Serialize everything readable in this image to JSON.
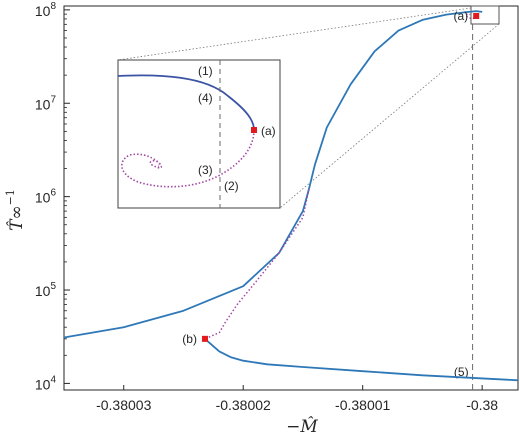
{
  "chart_data": {
    "type": "line",
    "xlabel": "−M̂",
    "ylabel": "T̂∞",
    "ylabel_superscript": "−1",
    "ylog": true,
    "xlim": [
      -0.380035,
      -0.379997
    ],
    "ylim": [
      8500,
      110000000
    ],
    "xticks": [
      {
        "value": -0.38003,
        "label": "-0.38003"
      },
      {
        "value": -0.38002,
        "label": "-0.38002"
      },
      {
        "value": -0.38001,
        "label": "-0.38001"
      },
      {
        "value": -0.38,
        "label": "-0.38"
      }
    ],
    "yticks": [
      {
        "value": 10000,
        "base": "10",
        "exp": "4"
      },
      {
        "value": 100000,
        "base": "10",
        "exp": "5"
      },
      {
        "value": 1000000,
        "base": "10",
        "exp": "6"
      },
      {
        "value": 10000000,
        "base": "10",
        "exp": "7"
      },
      {
        "value": 100000000,
        "base": "10",
        "exp": "8"
      }
    ],
    "series": [
      {
        "style": "solid",
        "color": "#2e78b7",
        "x": [
          -0.380035,
          -0.38003,
          -0.380025,
          -0.38002,
          -0.380017,
          -0.380015,
          -0.3800145,
          -0.380014,
          -0.380013,
          -0.380011,
          -0.380009,
          -0.380007,
          -0.380005,
          -0.380003,
          -0.3800015,
          -0.3800005,
          -0.38
        ],
        "y": [
          31000,
          40000,
          60000,
          110000,
          250000,
          700000,
          1200000,
          2200000,
          5500000,
          16000000,
          36000000,
          60000000,
          78000000,
          89000000,
          94000000,
          97000000,
          95000000
        ]
      },
      {
        "style": "dotted",
        "color": "#a349a4",
        "x": [
          -0.3800004,
          -0.3800008,
          -0.3800012,
          -0.3800014,
          -0.3800012,
          -0.380001
        ],
        "y": [
          86000000,
          80000000,
          83000000,
          88000000,
          91000000,
          89000000
        ]
      },
      {
        "style": "dotted",
        "color": "#a349a4",
        "x": [
          -0.3800145,
          -0.380015,
          -0.380017,
          -0.380019,
          -0.3800205,
          -0.3800215,
          -0.380022,
          -0.3800232
        ],
        "y": [
          1200000,
          600000,
          250000,
          120000,
          70000,
          45000,
          35000,
          30000
        ]
      },
      {
        "style": "solid",
        "color": "#2e78b7",
        "x": [
          -0.3800232,
          -0.380022,
          -0.380021,
          -0.38002,
          -0.380018,
          -0.380015,
          -0.38001,
          -0.380005,
          -0.379997
        ],
        "y": [
          30000,
          22000,
          19000,
          17500,
          16000,
          15000,
          13500,
          12200,
          10800
        ]
      }
    ],
    "points": [
      {
        "label": "(a)",
        "x": -0.3800005,
        "y": 86000000,
        "color": "#e31a1c"
      },
      {
        "label": "(b)",
        "x": -0.3800232,
        "y": 30000,
        "color": "#e31a1c"
      }
    ],
    "vline": {
      "x": -0.3800008,
      "label": "(5)"
    },
    "inset": {
      "labels": [
        "(1)",
        "(4)",
        "(a)",
        "(3)",
        "(2)"
      ]
    }
  }
}
